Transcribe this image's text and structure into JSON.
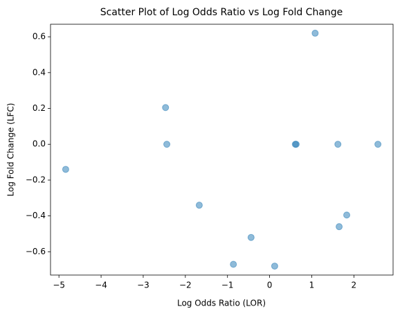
{
  "chart_data": {
    "type": "scatter",
    "title": "Scatter Plot of Log Odds Ratio vs Log Fold Change",
    "x_label": "Log Odds Ratio (LOR)",
    "y_label": "Log Fold Change (LFC)",
    "x": [
      1.08,
      -2.47,
      -2.44,
      0.61,
      0.63,
      1.62,
      2.57,
      -4.84,
      -1.67,
      1.83,
      1.65,
      -0.44,
      -0.86,
      0.12
    ],
    "values": [
      0.62,
      0.205,
      0,
      0,
      0,
      0,
      0,
      -0.14,
      -0.34,
      -0.395,
      -0.46,
      -0.52,
      -0.67,
      -0.68
    ],
    "color": "#1f77b4",
    "xlim": [
      -5.2,
      2.93
    ],
    "xticks": [
      -5,
      -4,
      -3,
      -2,
      -1,
      0,
      1,
      2
    ],
    "ylim": [
      -0.73,
      0.67
    ],
    "yticks": [
      -0.6,
      -0.4,
      -0.2,
      0.0,
      0.2,
      0.4,
      0.6
    ]
  }
}
